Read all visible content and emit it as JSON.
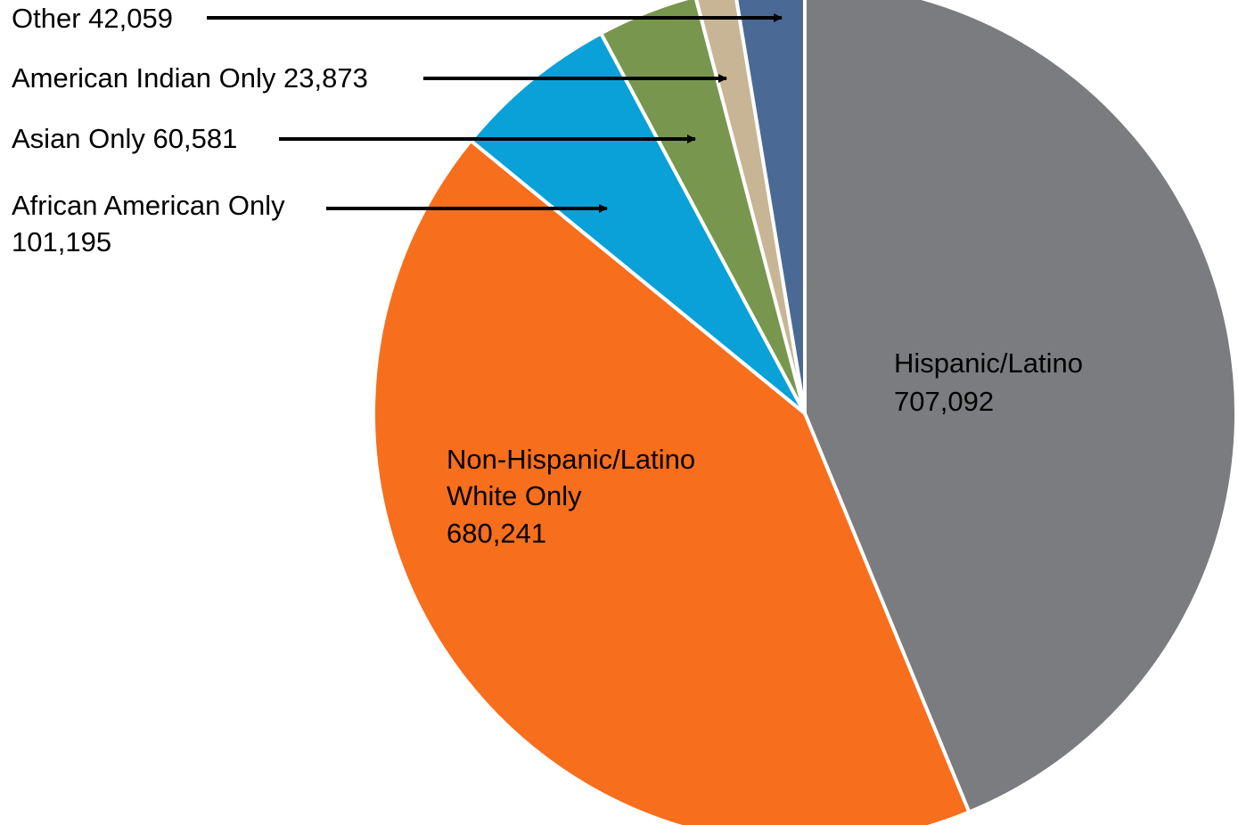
{
  "chart_data": {
    "type": "pie",
    "start": "12 o'clock",
    "direction": "clockwise",
    "slices": [
      {
        "key": "hispanic",
        "label": "Hispanic/Latino",
        "value": 707092,
        "display": "707,092",
        "color": "#7b7c80",
        "label_position": "inside"
      },
      {
        "key": "white",
        "label": "Non-Hispanic/Latino White Only",
        "label_lines": [
          "Non-Hispanic/Latino",
          "White Only"
        ],
        "value": 680241,
        "display": "680,241",
        "color": "#f76e1d",
        "label_position": "inside"
      },
      {
        "key": "african",
        "label": "African American Only",
        "value": 101195,
        "display": "101,195",
        "color": "#0aa1d9",
        "label_position": "outside-arrow"
      },
      {
        "key": "asian",
        "label": "Asian Only",
        "value": 60581,
        "display": "60,581",
        "color": "#78964e",
        "label_position": "outside-arrow"
      },
      {
        "key": "amind",
        "label": "American Indian Only",
        "value": 23873,
        "display": "23,873",
        "color": "#c8b595",
        "label_position": "outside-arrow"
      },
      {
        "key": "other",
        "label": "Other",
        "value": 42059,
        "display": "42,059",
        "color": "#4a6a95",
        "label_position": "outside-arrow"
      }
    ]
  }
}
